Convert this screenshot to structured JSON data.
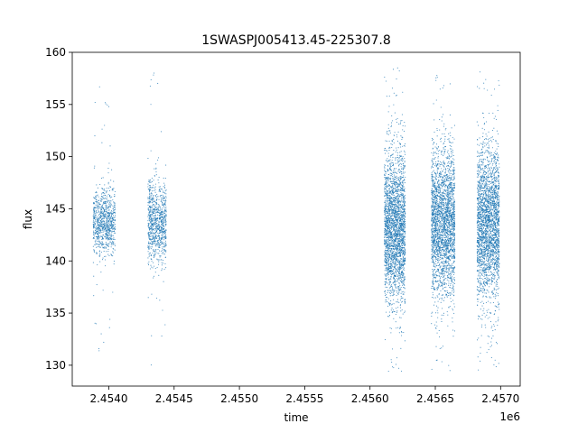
{
  "chart_data": {
    "type": "scatter",
    "title": "1SWASPJ005413.45-225307.8",
    "xlabel": "time",
    "ylabel": "flux",
    "x_offset_text": "1e6",
    "xlim": [
      2.45372,
      2.45715
    ],
    "ylim": [
      128,
      160
    ],
    "x_scale_factor": 1000000,
    "x_ticks": [
      2.454,
      2.4545,
      2.455,
      2.4555,
      2.456,
      2.4565,
      2.457
    ],
    "x_tick_labels": [
      "2.4540",
      "2.4545",
      "2.4550",
      "2.4555",
      "2.4560",
      "2.4565",
      "2.4570"
    ],
    "y_ticks": [
      130,
      135,
      140,
      145,
      150,
      155,
      160
    ],
    "y_tick_labels": [
      "130",
      "135",
      "140",
      "145",
      "150",
      "155",
      "160"
    ],
    "grid": false,
    "legend": "none",
    "marker_color": "#1f77b4",
    "observing_seasons": [
      {
        "t_start": 2.45388,
        "t_end": 2.45405,
        "flux_center": 143.8,
        "flux_spread": 1.6,
        "flux_min": 129.6,
        "flux_max": 157.8,
        "points": 900
      },
      {
        "t_start": 2.4543,
        "t_end": 2.45444,
        "flux_center": 143.6,
        "flux_spread": 1.9,
        "flux_min": 130.0,
        "flux_max": 158.3,
        "points": 900
      },
      {
        "t_start": 2.45611,
        "t_end": 2.45627,
        "flux_center": 143.3,
        "flux_spread": 3.6,
        "flux_min": 129.3,
        "flux_max": 158.5,
        "points": 2600
      },
      {
        "t_start": 2.45647,
        "t_end": 2.45665,
        "flux_center": 143.5,
        "flux_spread": 3.4,
        "flux_min": 129.2,
        "flux_max": 158.5,
        "points": 2600
      },
      {
        "t_start": 2.45682,
        "t_end": 2.45699,
        "flux_center": 143.5,
        "flux_spread": 3.5,
        "flux_min": 129.4,
        "flux_max": 158.3,
        "points": 2600
      }
    ]
  }
}
